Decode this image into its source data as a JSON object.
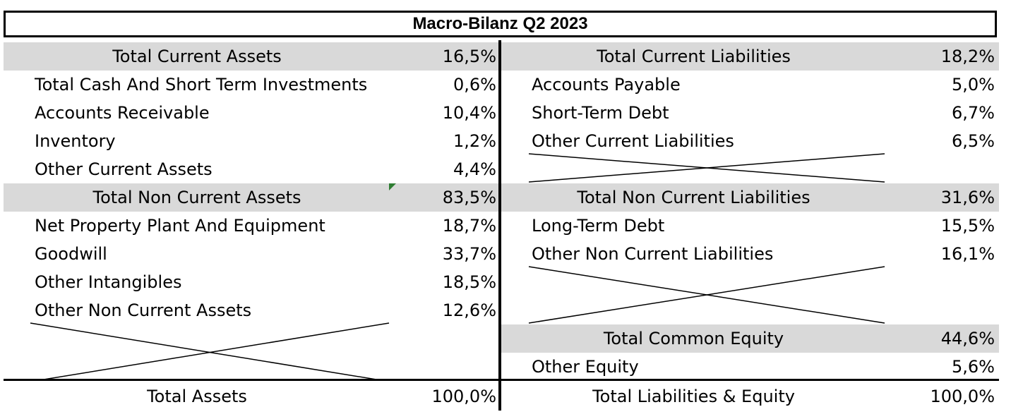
{
  "title": "Macro-Bilanz Q2 2023",
  "assets": {
    "current_header": {
      "label": "Total Current Assets",
      "value": "16,5%"
    },
    "current_items": [
      {
        "label": "Total Cash And Short Term Investments",
        "value": "0,6%"
      },
      {
        "label": "Accounts Receivable",
        "value": "10,4%"
      },
      {
        "label": "Inventory",
        "value": "1,2%"
      },
      {
        "label": "Other Current Assets",
        "value": "4,4%"
      }
    ],
    "noncurrent_header": {
      "label": "Total Non Current Assets",
      "value": "83,5%"
    },
    "noncurrent_items": [
      {
        "label": "Net Property Plant And Equipment",
        "value": "18,7%"
      },
      {
        "label": "Goodwill",
        "value": "33,7%"
      },
      {
        "label": "Other Intangibles",
        "value": "18,5%"
      },
      {
        "label": "Other Non Current Assets",
        "value": "12,6%"
      }
    ],
    "total": {
      "label": "Total Assets",
      "value": "100,0%"
    }
  },
  "liabilities": {
    "current_header": {
      "label": "Total Current Liabilities",
      "value": "18,2%"
    },
    "current_items": [
      {
        "label": "Accounts Payable",
        "value": "5,0%"
      },
      {
        "label": "Short-Term Debt",
        "value": "6,7%"
      },
      {
        "label": "Other Current Liabilities",
        "value": "6,5%"
      }
    ],
    "noncurrent_header": {
      "label": "Total Non Current Liabilities",
      "value": "31,6%"
    },
    "noncurrent_items": [
      {
        "label": "Long-Term Debt",
        "value": "15,5%"
      },
      {
        "label": "Other Non Current Liabilities",
        "value": "16,1%"
      }
    ],
    "equity_header": {
      "label": "Total Common Equity",
      "value": "44,6%"
    },
    "equity_items": [
      {
        "label": "Other Equity",
        "value": "5,6%"
      }
    ],
    "total": {
      "label": "Total Liabilities & Equity",
      "value": "100,0%"
    }
  }
}
